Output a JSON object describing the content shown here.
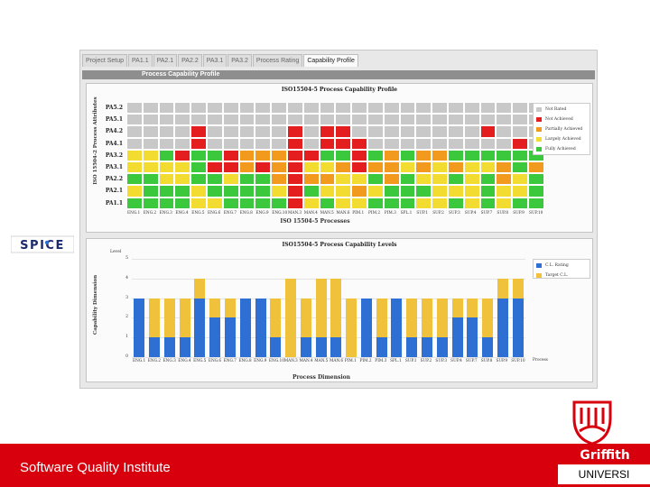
{
  "tabs": [
    "Project Setup",
    "PA1.1",
    "PA2.1",
    "PA2.2",
    "PA3.1",
    "PA3.2",
    "Process Rating",
    "Capability Profile"
  ],
  "active_tab": 7,
  "panel_title": "Process Capability Profile",
  "profile": {
    "title": "ISO15504-5 Process Capability Profile",
    "y_axis_label": "ISO 15504-2 Process Attributes",
    "x_axis_label": "ISO 15504-5 Processes",
    "rows": [
      "PA5.2",
      "PA5.1",
      "PA4.2",
      "PA4.1",
      "PA3.2",
      "PA3.1",
      "PA2.2",
      "PA2.1",
      "PA1.1"
    ],
    "processes": [
      "ENG.1",
      "ENG.2",
      "ENG.3",
      "ENG.4",
      "ENG.5",
      "ENG.6",
      "ENG.7",
      "ENG.8",
      "ENG.9",
      "ENG.10",
      "MAN.3",
      "MAN.4",
      "MAN.5",
      "MAN.6",
      "PIM.1",
      "PIM.2",
      "PIM.3",
      "SPL.1",
      "SUP.1",
      "SUP.2",
      "SUP.3",
      "SUP.4",
      "SUP.7",
      "SUP.8",
      "SUP.9",
      "SUP.10"
    ],
    "legend": [
      {
        "label": "Not Rated",
        "color": "#c8c8c8"
      },
      {
        "label": "Not Achieved",
        "color": "#e41e1e"
      },
      {
        "label": "Partially Achieved",
        "color": "#f29a1e"
      },
      {
        "label": "Largely Achieved",
        "color": "#f2dc32"
      },
      {
        "label": "Fully Achieved",
        "color": "#3cc83c"
      }
    ],
    "matrix": [
      "NNNNNNNNNNNNNNNNNNNNNNNNNN",
      "NNNNNNNNNNNNNNNNNNNNNNNNNN",
      "NNNNXNNNNNXNXXNNNNNNNNXNNN",
      "NNNNXNNNNNXNXXXNNNNNNNNNXN",
      "LLFXFFXPPPXXFFXFPFPPFFFFFF",
      "LLLLFXXPXPXLLPXPPLPLPLLPFP",
      "FFLLFFLFFPXPPLLFPFLLFLFPLF",
      "LFFFLFFFFLXFLLPLFFFLLLFLLF",
      "FFFFLLFFFFXLFLLFFFLLFLFLFF"
    ]
  },
  "levels": {
    "title": "ISO15504-5 Process Capability Levels",
    "y_axis_label": "Capability Dimension",
    "y_top_label": "Level",
    "x_axis_label": "Process Dimension",
    "x_end_label": "Process",
    "yticks": [
      "0",
      "1",
      "2",
      "3",
      "4",
      "5"
    ],
    "legend": [
      {
        "label": "C.L. Rating",
        "color": "#2d6fd2"
      },
      {
        "label": "Target C.L.",
        "color": "#f0c23c"
      }
    ]
  },
  "chart_data": {
    "type": "bar",
    "categories": [
      "ENG.1",
      "ENG.2",
      "ENG.3",
      "ENG.4",
      "ENG.5",
      "ENG.6",
      "ENG.7",
      "ENG.8",
      "ENG.9",
      "ENG.10",
      "MAN.3",
      "MAN.4",
      "MAN.5",
      "MAN.6",
      "PIM.1",
      "PIM.2",
      "PIM.3",
      "SPL.1",
      "SUP.1",
      "SUP.2",
      "SUP.3",
      "SUP.4",
      "SUP.7",
      "SUP.8",
      "SUP.9",
      "SUP.10"
    ],
    "series": [
      {
        "name": "C.L. Rating",
        "values": [
          3,
          1,
          1,
          1,
          3,
          2,
          2,
          3,
          3,
          1,
          0,
          1,
          1,
          1,
          0,
          3,
          1,
          3,
          1,
          1,
          1,
          2,
          2,
          1,
          3,
          3
        ]
      },
      {
        "name": "Target C.L.",
        "values": [
          3,
          3,
          3,
          3,
          4,
          3,
          3,
          3,
          3,
          3,
          4,
          3,
          4,
          4,
          3,
          3,
          3,
          3,
          3,
          3,
          3,
          3,
          3,
          3,
          4,
          4
        ]
      }
    ],
    "title": "ISO15504-5 Process Capability Levels",
    "xlabel": "Process Dimension",
    "ylabel": "Capability Dimension",
    "ylim": [
      0,
      5
    ]
  },
  "spice_logo_text": "SPICE",
  "footer": {
    "text": "Software Quality Institute",
    "brand_name": "Griffith",
    "brand_sub": "UNIVERSI",
    "brand_color": "#d8000c"
  }
}
